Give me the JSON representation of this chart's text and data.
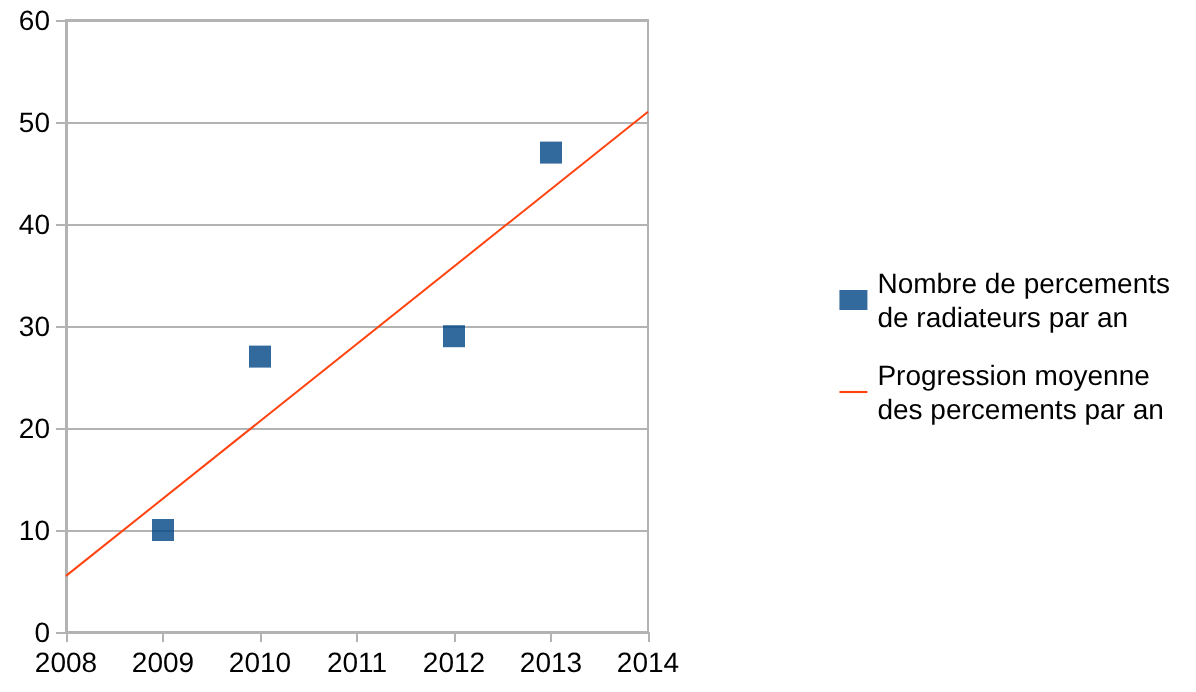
{
  "chart_data": {
    "type": "scatter",
    "series": [
      {
        "name": "Nombre de percements de radiateurs par an",
        "type": "scatter",
        "marker": "square",
        "color": "#004586",
        "x": [
          2009,
          2010,
          2012,
          2013
        ],
        "values": [
          10,
          27,
          29,
          47
        ]
      },
      {
        "name": "Progression moyenne des percements par an",
        "type": "line",
        "marker": "none",
        "color": "#ff420e",
        "x": [
          2008,
          2014
        ],
        "values": [
          5.5,
          51
        ]
      }
    ],
    "xlim": [
      2008,
      2014
    ],
    "xticks": [
      2008,
      2009,
      2010,
      2011,
      2012,
      2013,
      2014
    ],
    "ylim": [
      0,
      60
    ],
    "yticks": [
      0,
      10,
      20,
      30,
      40,
      50,
      60
    ],
    "grid": "y",
    "legend": "right"
  }
}
